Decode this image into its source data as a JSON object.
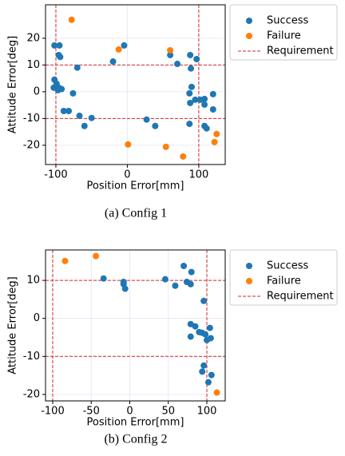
{
  "chart_data": [
    {
      "type": "scatter",
      "caption": "(a) Config 1",
      "xlabel": "Position Error[mm]",
      "ylabel": "Attitude Error[deg]",
      "xlim": [
        -114.5,
        137
      ],
      "ylim": [
        -27.2,
        32.5
      ],
      "xticks": [
        -100,
        0,
        100
      ],
      "yticks": [
        -20,
        -10,
        0,
        10,
        20
      ],
      "grid": true,
      "legend": "outside-right",
      "series": [
        {
          "name": "Success",
          "color": "#1f77b4",
          "x": [
            -102,
            -95,
            -4.5,
            -96,
            -94,
            -20,
            -70,
            -102,
            -99,
            -103,
            -96,
            -92,
            -97,
            -89,
            -82,
            -76,
            -67,
            -50,
            -60,
            27,
            39,
            60,
            70,
            88,
            97,
            89,
            90,
            87,
            88,
            95,
            102,
            108,
            108,
            120,
            120,
            108,
            111,
            87
          ],
          "values": [
            17.3,
            17.3,
            17.3,
            13.7,
            13,
            11.3,
            9,
            4.5,
            3,
            1.5,
            1.5,
            1,
            0.6,
            -7.2,
            -7.2,
            -0.6,
            -9,
            -9.8,
            -12.8,
            -10.4,
            -12.8,
            13.7,
            10.4,
            13.7,
            12.2,
            8.7,
            1.8,
            -0.6,
            -4.2,
            -3,
            -3,
            -2.7,
            -4.8,
            -0.9,
            -6.6,
            -12.8,
            -13.7,
            -12
          ]
        },
        {
          "name": "Failure",
          "color": "#ff7f0e",
          "x": [
            -78,
            -12,
            60,
            1,
            54,
            78,
            125,
            122
          ],
          "values": [
            26.9,
            15.8,
            15.5,
            -19.7,
            -20.6,
            -24.2,
            -15.8,
            -18.8
          ]
        }
      ],
      "reference_lines": {
        "name": "Requirement",
        "color": "#d62728",
        "x": [
          -100,
          100
        ],
        "y": [
          -10,
          10
        ]
      }
    },
    {
      "type": "scatter",
      "caption": "(b) Config 2",
      "xlabel": "Position Error[mm]",
      "ylabel": "Attitude Error[deg]",
      "xlim": [
        -109.3,
        123.8
      ],
      "ylim": [
        -21.7,
        18
      ],
      "xticks": [
        -100,
        -50,
        0,
        50,
        100
      ],
      "yticks": [
        -20,
        -10,
        0,
        10
      ],
      "grid": true,
      "legend": "outside-right",
      "series": [
        {
          "name": "Success",
          "color": "#1f77b4",
          "x": [
            -34,
            -8,
            -8,
            -6,
            46,
            59,
            70,
            74,
            79,
            80,
            96,
            79,
            85,
            90,
            94,
            98,
            79,
            100,
            105,
            104,
            96,
            94,
            106,
            102
          ],
          "values": [
            10.5,
            9.6,
            9,
            7.8,
            10.3,
            8.6,
            13.8,
            9.6,
            9,
            12.2,
            4.6,
            -1.5,
            -2.1,
            -3.6,
            -3.8,
            -4.2,
            -4.8,
            -5.7,
            -5.2,
            -2.5,
            -12.4,
            -14,
            -14.9,
            -16.8
          ]
        },
        {
          "name": "Failure",
          "color": "#ff7f0e",
          "x": [
            -84,
            -44,
            113
          ],
          "values": [
            15.1,
            16.4,
            -19.5
          ]
        }
      ],
      "reference_lines": {
        "name": "Requirement",
        "color": "#d62728",
        "x": [
          -100,
          100
        ],
        "y": [
          -10,
          10
        ]
      }
    }
  ]
}
